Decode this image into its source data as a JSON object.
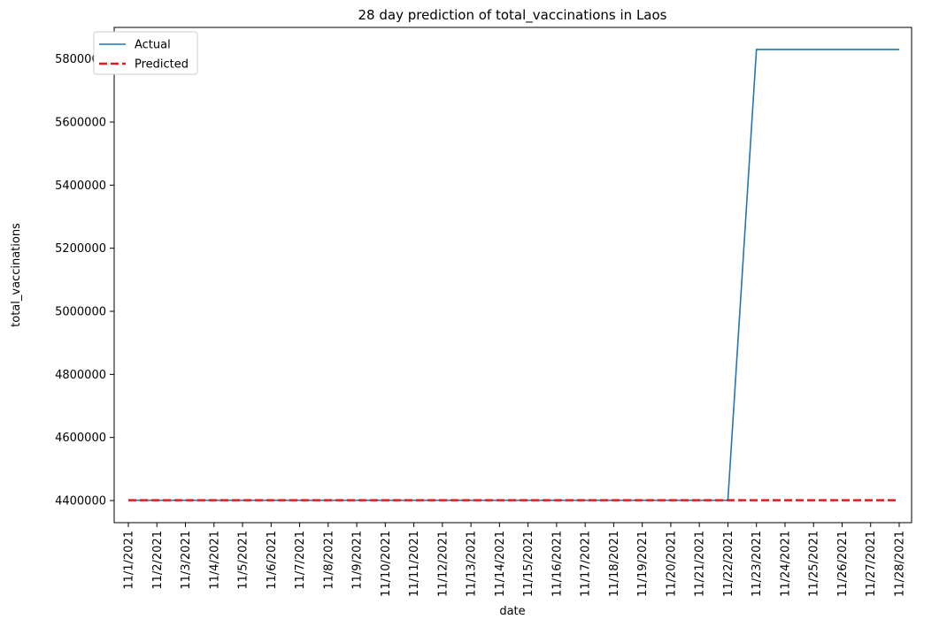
{
  "chart_data": {
    "type": "line",
    "title": "28 day prediction of total_vaccinations in Laos",
    "xlabel": "date",
    "ylabel": "total_vaccinations",
    "x": [
      "11/1/2021",
      "11/2/2021",
      "11/3/2021",
      "11/4/2021",
      "11/5/2021",
      "11/6/2021",
      "11/7/2021",
      "11/8/2021",
      "11/9/2021",
      "11/10/2021",
      "11/11/2021",
      "11/12/2021",
      "11/13/2021",
      "11/14/2021",
      "11/15/2021",
      "11/16/2021",
      "11/17/2021",
      "11/18/2021",
      "11/19/2021",
      "11/20/2021",
      "11/21/2021",
      "11/22/2021",
      "11/23/2021",
      "11/24/2021",
      "11/25/2021",
      "11/26/2021",
      "11/27/2021",
      "11/28/2021"
    ],
    "yticks": [
      4400000,
      4600000,
      4800000,
      5000000,
      5200000,
      5400000,
      5600000,
      5800000
    ],
    "ylim": [
      4330000,
      5900000
    ],
    "grid": false,
    "legend_position": "top-left",
    "series": [
      {
        "name": "Actual",
        "color": "#1f77b4",
        "style": "solid",
        "values": [
          4401000,
          4401000,
          4401000,
          4401000,
          4401000,
          4401000,
          4401000,
          4401000,
          4401000,
          4401000,
          4401000,
          4401000,
          4401000,
          4401000,
          4401000,
          4401000,
          4401000,
          4401000,
          4401000,
          4401000,
          4401000,
          4401000,
          5830000,
          5830000,
          5830000,
          5830000,
          5830000,
          5830000
        ]
      },
      {
        "name": "Predicted",
        "color": "#e41a1c",
        "style": "dashed",
        "values": [
          4401000,
          4401000,
          4401000,
          4401000,
          4401000,
          4401000,
          4401000,
          4401000,
          4401000,
          4401000,
          4401000,
          4401000,
          4401000,
          4401000,
          4401000,
          4401000,
          4401000,
          4401000,
          4401000,
          4401000,
          4401000,
          4401000,
          4401000,
          4401000,
          4401000,
          4401000,
          4401000,
          4401000
        ]
      }
    ]
  }
}
